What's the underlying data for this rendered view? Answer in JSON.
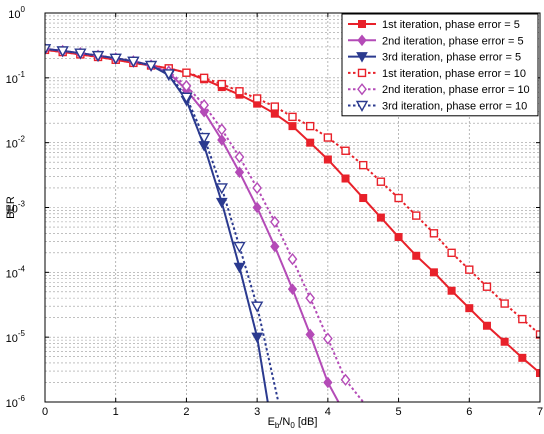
{
  "chart_data": {
    "type": "line",
    "xlabel_main": "E",
    "xlabel_sub1": "b",
    "xlabel_mid": "/N",
    "xlabel_sub2": "0",
    "xlabel_tail": " [dB]",
    "ylabel": "BER",
    "xlim": [
      0,
      7
    ],
    "ylim": [
      1e-06,
      1
    ],
    "yscale": "log",
    "grid": true,
    "legend_position": "top-right",
    "x_ticks": [
      "0",
      "1",
      "2",
      "3",
      "4",
      "5",
      "6",
      "7"
    ],
    "y_ticks": [
      {
        "base": "10",
        "exp": "0"
      },
      {
        "base": "10",
        "exp": "-1"
      },
      {
        "base": "10",
        "exp": "-2"
      },
      {
        "base": "10",
        "exp": "-3"
      },
      {
        "base": "10",
        "exp": "-4"
      },
      {
        "base": "10",
        "exp": "-5"
      },
      {
        "base": "10",
        "exp": "-6"
      }
    ],
    "series": [
      {
        "name": "1st iteration, phase error = 5",
        "color": "#e8212a",
        "line": "solid",
        "marker": "square",
        "filled": true,
        "x": [
          0,
          0.25,
          0.5,
          0.75,
          1,
          1.25,
          1.5,
          1.75,
          2,
          2.25,
          2.5,
          2.75,
          3,
          3.25,
          3.5,
          3.75,
          4,
          4.25,
          4.5,
          4.75,
          5,
          5.25,
          5.5,
          5.75,
          6,
          6.25,
          6.5,
          6.75,
          7
        ],
        "y": [
          0.27,
          0.25,
          0.23,
          0.21,
          0.19,
          0.17,
          0.155,
          0.14,
          0.12,
          0.095,
          0.072,
          0.055,
          0.04,
          0.028,
          0.018,
          0.01,
          0.0055,
          0.0028,
          0.0014,
          0.0007,
          0.00035,
          0.00018,
          0.0001,
          5.2e-05,
          2.8e-05,
          1.5e-05,
          8.5e-06,
          4.8e-06,
          2.8e-06
        ]
      },
      {
        "name": "2nd iteration, phase error = 5",
        "color": "#b44bb7",
        "line": "solid",
        "marker": "diamond",
        "filled": true,
        "x": [
          0,
          0.25,
          0.5,
          0.75,
          1,
          1.25,
          1.5,
          1.75,
          2,
          2.25,
          2.5,
          2.75,
          3,
          3.25,
          3.5,
          3.75,
          4,
          4.15
        ],
        "y": [
          0.28,
          0.26,
          0.24,
          0.22,
          0.2,
          0.18,
          0.155,
          0.12,
          0.065,
          0.03,
          0.011,
          0.0035,
          0.001,
          0.00025,
          5.5e-05,
          1.1e-05,
          2e-06,
          1e-06
        ]
      },
      {
        "name": "3rd iteration, phase error = 5",
        "color": "#2b3a8f",
        "line": "solid",
        "marker": "triangle",
        "filled": true,
        "x": [
          0,
          0.25,
          0.5,
          0.75,
          1,
          1.25,
          1.5,
          1.75,
          2,
          2.25,
          2.5,
          2.75,
          3,
          3.15
        ],
        "y": [
          0.28,
          0.26,
          0.24,
          0.22,
          0.2,
          0.18,
          0.155,
          0.11,
          0.045,
          0.009,
          0.0012,
          0.00012,
          1e-05,
          1e-06
        ]
      },
      {
        "name": "1st iteration, phase error = 10",
        "color": "#e8212a",
        "line": "dotted",
        "marker": "square",
        "filled": false,
        "x": [
          0,
          0.25,
          0.5,
          0.75,
          1,
          1.25,
          1.5,
          1.75,
          2,
          2.25,
          2.5,
          2.75,
          3,
          3.25,
          3.5,
          3.75,
          4,
          4.25,
          4.5,
          4.75,
          5,
          5.25,
          5.5,
          5.75,
          6,
          6.25,
          6.5,
          6.75,
          7
        ],
        "y": [
          0.27,
          0.25,
          0.23,
          0.21,
          0.19,
          0.17,
          0.155,
          0.14,
          0.12,
          0.1,
          0.08,
          0.062,
          0.048,
          0.036,
          0.025,
          0.018,
          0.012,
          0.0075,
          0.0045,
          0.0025,
          0.0014,
          0.00075,
          0.0004,
          0.0002,
          0.00011,
          6e-05,
          3.3e-05,
          1.9e-05,
          1.1e-05
        ]
      },
      {
        "name": "2nd iteration, phase error = 10",
        "color": "#b44bb7",
        "line": "dotted",
        "marker": "diamond",
        "filled": false,
        "x": [
          0,
          0.25,
          0.5,
          0.75,
          1,
          1.25,
          1.5,
          1.75,
          2,
          2.25,
          2.5,
          2.75,
          3,
          3.25,
          3.5,
          3.75,
          4,
          4.25,
          4.5
        ],
        "y": [
          0.28,
          0.26,
          0.24,
          0.22,
          0.2,
          0.18,
          0.155,
          0.125,
          0.075,
          0.038,
          0.016,
          0.006,
          0.002,
          0.0006,
          0.00016,
          4e-05,
          9.5e-06,
          2.2e-06,
          1e-06
        ]
      },
      {
        "name": "3rd iteration, phase error = 10",
        "color": "#2b3a8f",
        "line": "dotted",
        "marker": "triangle",
        "filled": false,
        "x": [
          0,
          0.25,
          0.5,
          0.75,
          1,
          1.25,
          1.5,
          1.75,
          2,
          2.25,
          2.5,
          2.75,
          3,
          3.3
        ],
        "y": [
          0.28,
          0.26,
          0.24,
          0.22,
          0.2,
          0.18,
          0.155,
          0.115,
          0.05,
          0.012,
          0.002,
          0.00025,
          3e-05,
          1e-06
        ]
      }
    ]
  }
}
